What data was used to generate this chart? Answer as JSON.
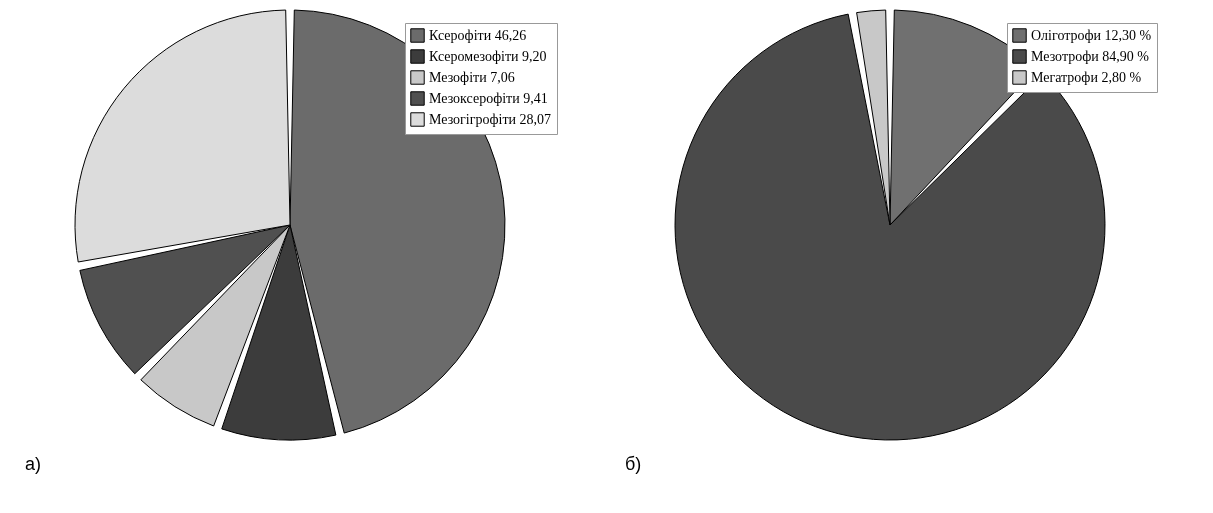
{
  "chart_data": [
    {
      "type": "pie",
      "categories": [
        "Ксерофіти 46,26",
        "Ксеромезофіти 9,20",
        "Мезофіти 7,06",
        "Мезоксерофіти 9,41",
        "Мезогігрофіти 28,07"
      ],
      "values": [
        46.26,
        9.2,
        7.06,
        9.41,
        28.07
      ],
      "colors": [
        "#6b6b6b",
        "#3c3c3c",
        "#c8c8c8",
        "#505050",
        "#dcdcdc"
      ],
      "legend": "top right",
      "annotations": [
        "а)"
      ]
    },
    {
      "type": "pie",
      "categories": [
        "Оліготрофи 12,30 %",
        "Мезотрофи 84,90 %",
        "Мегатрофи 2,80 %"
      ],
      "values": [
        12.3,
        84.9,
        2.8
      ],
      "colors": [
        "#707070",
        "#4a4a4a",
        "#c8c8c8"
      ],
      "legend": "top right",
      "annotations": [
        "б)"
      ]
    }
  ]
}
